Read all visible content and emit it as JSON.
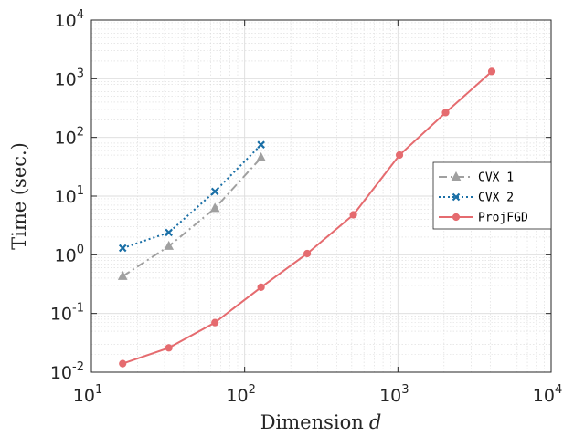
{
  "chart_data": {
    "type": "line",
    "xlabel": "Dimension",
    "xlabel_var": "d",
    "ylabel": "Time (sec.)",
    "xscale": "log",
    "yscale": "log",
    "xlim": [
      10,
      10000
    ],
    "ylim": [
      0.01,
      10000
    ],
    "grid": "on (major and minor)",
    "legend_placement": "right",
    "x_ticks": [
      {
        "base": "10",
        "exp": "1",
        "value": 10
      },
      {
        "base": "10",
        "exp": "2",
        "value": 100
      },
      {
        "base": "10",
        "exp": "3",
        "value": 1000
      },
      {
        "base": "10",
        "exp": "4",
        "value": 10000
      }
    ],
    "y_ticks": [
      {
        "base": "10",
        "exp": "-2",
        "value": 0.01
      },
      {
        "base": "10",
        "exp": "-1",
        "value": 0.1
      },
      {
        "base": "10",
        "exp": "0",
        "value": 1
      },
      {
        "base": "10",
        "exp": "1",
        "value": 10
      },
      {
        "base": "10",
        "exp": "2",
        "value": 100
      },
      {
        "base": "10",
        "exp": "3",
        "value": 1000
      },
      {
        "base": "10",
        "exp": "4",
        "value": 10000
      }
    ],
    "series": [
      {
        "name": "CVX 1",
        "color": "#a0a0a0",
        "line_style": "dash-dot",
        "marker": "triangle",
        "x": [
          16,
          32,
          64,
          128
        ],
        "y": [
          0.43,
          1.4,
          6.2,
          45
        ]
      },
      {
        "name": "CVX 2",
        "color": "#1a6fa6",
        "line_style": "dotted",
        "marker": "x",
        "x": [
          16,
          32,
          64,
          128
        ],
        "y": [
          1.3,
          2.4,
          12,
          75
        ]
      },
      {
        "name": "ProjFGD",
        "color": "#e56b6f",
        "line_style": "solid",
        "marker": "circle",
        "x": [
          16,
          32,
          64,
          128,
          256,
          512,
          1024,
          2048,
          4096
        ],
        "y": [
          0.014,
          0.026,
          0.07,
          0.28,
          1.05,
          4.8,
          50,
          265,
          1330
        ]
      }
    ]
  }
}
